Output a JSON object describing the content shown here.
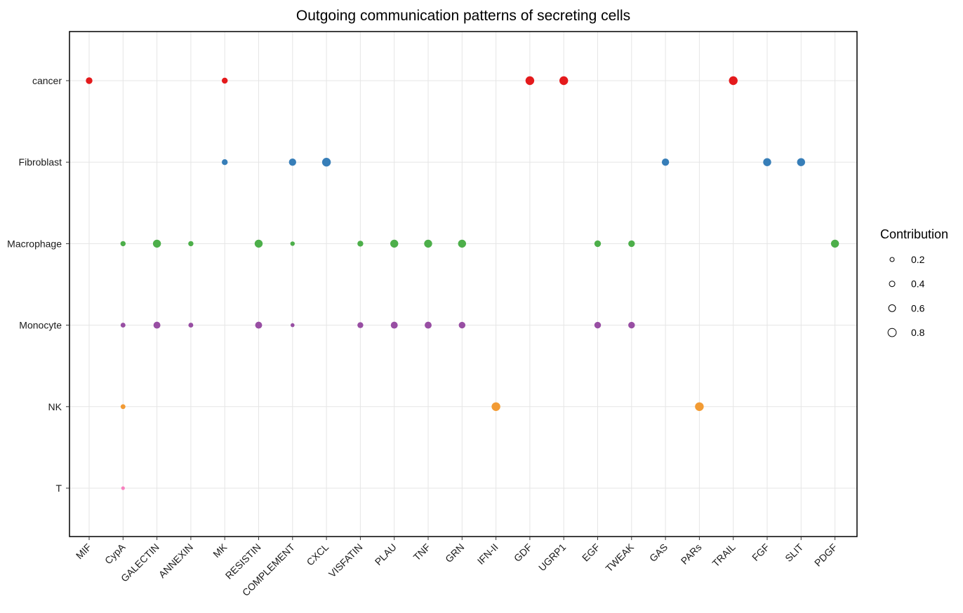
{
  "chart_data": {
    "type": "scatter",
    "title": "Outgoing communication patterns of secreting cells",
    "xlabel": "",
    "ylabel": "",
    "grid": true,
    "legend_placement": "right",
    "x_categories": [
      "MIF",
      "CypA",
      "GALECTIN",
      "ANNEXIN",
      "MK",
      "RESISTIN",
      "COMPLEMENT",
      "CXCL",
      "VISFATIN",
      "PLAU",
      "TNF",
      "GRN",
      "IFN-II",
      "GDF",
      "UGRP1",
      "EGF",
      "TWEAK",
      "GAS",
      "PARs",
      "TRAIL",
      "FGF",
      "SLIT",
      "PDGF"
    ],
    "y_categories": [
      "T",
      "NK",
      "Monocyte",
      "Macrophage",
      "Fibroblast",
      "cancer"
    ],
    "series": [
      {
        "name": "cancer",
        "color": "#E41A1C",
        "points": [
          {
            "x": "MIF",
            "size": 0.5
          },
          {
            "x": "MK",
            "size": 0.4
          },
          {
            "x": "GDF",
            "size": 0.8
          },
          {
            "x": "UGRP1",
            "size": 0.8
          },
          {
            "x": "TRAIL",
            "size": 0.8
          }
        ]
      },
      {
        "name": "Fibroblast",
        "color": "#377EB8",
        "points": [
          {
            "x": "MK",
            "size": 0.4
          },
          {
            "x": "COMPLEMENT",
            "size": 0.6
          },
          {
            "x": "CXCL",
            "size": 0.8
          },
          {
            "x": "GAS",
            "size": 0.6
          },
          {
            "x": "FGF",
            "size": 0.7
          },
          {
            "x": "SLIT",
            "size": 0.7
          }
        ]
      },
      {
        "name": "Macrophage",
        "color": "#4DAF4A",
        "points": [
          {
            "x": "CypA",
            "size": 0.3
          },
          {
            "x": "GALECTIN",
            "size": 0.7
          },
          {
            "x": "ANNEXIN",
            "size": 0.3
          },
          {
            "x": "RESISTIN",
            "size": 0.7
          },
          {
            "x": "COMPLEMENT",
            "size": 0.2
          },
          {
            "x": "VISFATIN",
            "size": 0.4
          },
          {
            "x": "PLAU",
            "size": 0.7
          },
          {
            "x": "TNF",
            "size": 0.7
          },
          {
            "x": "GRN",
            "size": 0.7
          },
          {
            "x": "EGF",
            "size": 0.5
          },
          {
            "x": "TWEAK",
            "size": 0.5
          },
          {
            "x": "PDGF",
            "size": 0.7
          }
        ]
      },
      {
        "name": "Monocyte",
        "color": "#984EA3",
        "points": [
          {
            "x": "CypA",
            "size": 0.25
          },
          {
            "x": "GALECTIN",
            "size": 0.55
          },
          {
            "x": "ANNEXIN",
            "size": 0.25
          },
          {
            "x": "RESISTIN",
            "size": 0.55
          },
          {
            "x": "COMPLEMENT",
            "size": 0.12
          },
          {
            "x": "VISFATIN",
            "size": 0.4
          },
          {
            "x": "PLAU",
            "size": 0.55
          },
          {
            "x": "TNF",
            "size": 0.55
          },
          {
            "x": "GRN",
            "size": 0.5
          },
          {
            "x": "EGF",
            "size": 0.5
          },
          {
            "x": "TWEAK",
            "size": 0.5
          }
        ]
      },
      {
        "name": "NK",
        "color": "#F29B34",
        "points": [
          {
            "x": "CypA",
            "size": 0.25
          },
          {
            "x": "IFN-II",
            "size": 0.8
          },
          {
            "x": "PARs",
            "size": 0.8
          }
        ]
      },
      {
        "name": "T",
        "color": "#F781BF",
        "points": [
          {
            "x": "CypA",
            "size": 0.08
          }
        ]
      }
    ],
    "legend": {
      "title": "Contribution",
      "entries": [
        {
          "label": "0.2",
          "size": 0.2
        },
        {
          "label": "0.4",
          "size": 0.4
        },
        {
          "label": "0.6",
          "size": 0.6
        },
        {
          "label": "0.8",
          "size": 0.8
        }
      ]
    }
  }
}
